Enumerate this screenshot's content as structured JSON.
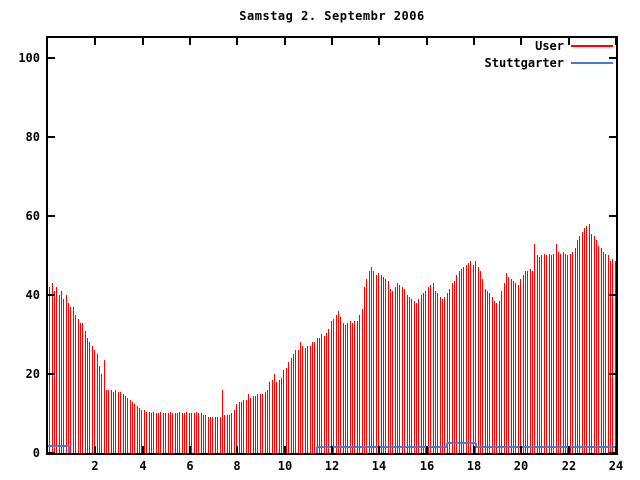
{
  "title": "Samstag 2. Septembr 2006",
  "colors": {
    "user_series": "#ff0000",
    "stuttgarter_series": "#4878dc",
    "axis": "#000000",
    "background": "#ffffff"
  },
  "legend": [
    {
      "label": "User",
      "color": "#ff0000"
    },
    {
      "label": "Stuttgarter",
      "color": "#4878dc"
    }
  ],
  "chart_data": {
    "type": "bar",
    "title": "Samstag 2. Septembr 2006",
    "xlabel": "",
    "ylabel": "",
    "xlim": [
      0,
      24
    ],
    "ylim": [
      0,
      100
    ],
    "x_ticks": [
      2,
      4,
      6,
      8,
      10,
      12,
      14,
      16,
      18,
      20,
      22,
      24
    ],
    "y_ticks": [
      0,
      20,
      40,
      60,
      80,
      100
    ],
    "grid": false,
    "legend_position": "top-right-inside",
    "series": [
      {
        "name": "User",
        "style": "impulses",
        "color": "#ff0000",
        "x_start": 0.05,
        "x_step": 0.1,
        "values": [
          42,
          43,
          41,
          42,
          40,
          41,
          39,
          40,
          38,
          37,
          37,
          35,
          34,
          33,
          33,
          31,
          29,
          28,
          27,
          26,
          25,
          22,
          20,
          23.5,
          16,
          16,
          16,
          15.5,
          16,
          15.5,
          15.5,
          15,
          14.5,
          14,
          13.5,
          13,
          12.5,
          12,
          11.5,
          11,
          11,
          10.5,
          10.5,
          10,
          10.5,
          10,
          10,
          10.5,
          10,
          10,
          10,
          10.5,
          10,
          10,
          10,
          10.5,
          10,
          10,
          10.5,
          10,
          10,
          10,
          10.5,
          10,
          10,
          9.5,
          9.5,
          9,
          9,
          9,
          9,
          9,
          9,
          16,
          9.5,
          9.5,
          9.5,
          10,
          11,
          12.5,
          13,
          13,
          13.5,
          13.5,
          15,
          14,
          14.5,
          14.5,
          15,
          15,
          15,
          15.5,
          16,
          18,
          18.5,
          20,
          18,
          18.5,
          19,
          21,
          21.5,
          23,
          24,
          25,
          26,
          26,
          28,
          27,
          26.5,
          27,
          27,
          28,
          28,
          29,
          29,
          30,
          29.5,
          30.5,
          31.5,
          33.5,
          34,
          35,
          36,
          34.5,
          33,
          32.5,
          33,
          33.5,
          33,
          33.5,
          33.5,
          35,
          36.5,
          42,
          44,
          46,
          47,
          46,
          45,
          45.5,
          45,
          44.5,
          44,
          43.5,
          41.5,
          41,
          42,
          43,
          42.5,
          42,
          41.5,
          40,
          39.5,
          39,
          38.5,
          38,
          39,
          40,
          40.5,
          41,
          42,
          42.5,
          43,
          41,
          40.5,
          39.5,
          39,
          39.5,
          40.5,
          41.5,
          43,
          43.5,
          45,
          46,
          46.5,
          47,
          47.5,
          48,
          48.5,
          47.5,
          48.5,
          47,
          46,
          44,
          41.5,
          41,
          40.5,
          39.5,
          38.5,
          38,
          38.5,
          41,
          43,
          45.5,
          44.5,
          44,
          43.5,
          43,
          42.5,
          44,
          45,
          46,
          46,
          46.5,
          46,
          53,
          50,
          49.5,
          50,
          50.5,
          50,
          50.5,
          50,
          50.5,
          53,
          51,
          50.5,
          51,
          50.5,
          50,
          50.5,
          51,
          52,
          54,
          55,
          56,
          57,
          57.5,
          58,
          55.5,
          55,
          54,
          52.5,
          52,
          51,
          50.5,
          50,
          48.5,
          49,
          48.5
        ]
      },
      {
        "name": "Stuttgarter",
        "style": "steps-line",
        "color": "#4878dc",
        "polylines": [
          [
            [
              0,
              1.6
            ],
            [
              0.9,
              1.6
            ],
            [
              0.9,
              0
            ]
          ],
          [
            [
              11.35,
              0
            ],
            [
              11.35,
              1.4
            ],
            [
              16.85,
              1.4
            ],
            [
              16.85,
              2.4
            ],
            [
              18.1,
              2.4
            ],
            [
              18.1,
              1.3
            ],
            [
              24,
              1.3
            ]
          ]
        ]
      }
    ]
  }
}
